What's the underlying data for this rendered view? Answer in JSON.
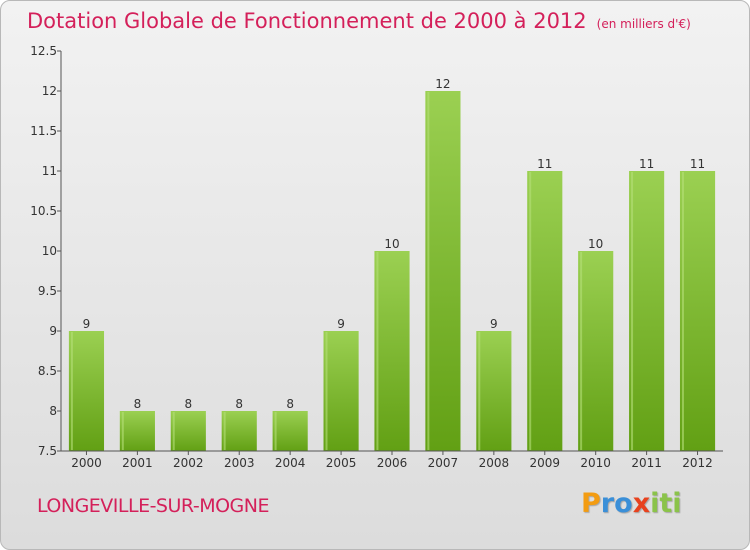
{
  "chart_data": {
    "type": "bar",
    "title": "Dotation Globale de Fonctionnement de 2000 à 2012",
    "subtitle": "(en milliers d'€)",
    "categories": [
      "2000",
      "2001",
      "2002",
      "2003",
      "2004",
      "2005",
      "2006",
      "2007",
      "2008",
      "2009",
      "2010",
      "2011",
      "2012"
    ],
    "values": [
      9,
      8,
      8,
      8,
      8,
      9,
      10,
      12,
      9,
      11,
      10,
      11,
      11
    ],
    "ylim": [
      7.5,
      12.5
    ],
    "yticks": [
      7.5,
      8,
      8.5,
      9,
      9.5,
      10,
      10.5,
      11,
      11.5,
      12,
      12.5
    ],
    "ytick_labels": [
      "7.5",
      "8",
      "8.5",
      "9",
      "9.5",
      "10",
      "10.5",
      "11",
      "11.5",
      "12",
      "12.5"
    ],
    "grid": false,
    "bar_color_top": "#9bd052",
    "bar_color_bottom": "#62a014"
  },
  "footer": {
    "commune": "LONGEVILLE-SUR-MOGNE",
    "logo_letters": [
      "P",
      "r",
      "o",
      "x",
      "i",
      "t",
      "i"
    ],
    "logo_colors": [
      "#f39c12",
      "#3a8fd8",
      "#3a8fd8",
      "#e8421e",
      "#8bc34a",
      "#8bc34a",
      "#8bc34a"
    ]
  }
}
